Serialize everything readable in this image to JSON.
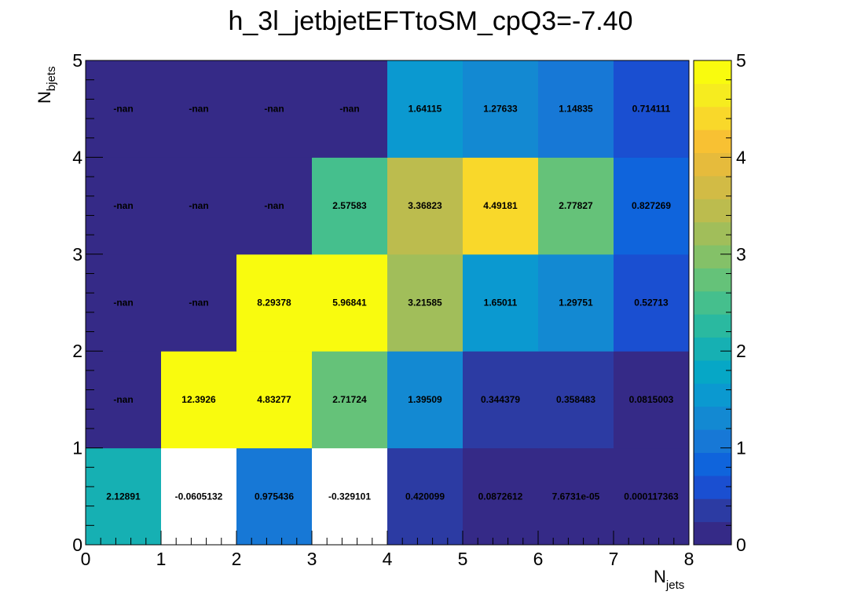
{
  "chart_data": {
    "type": "heatmap",
    "title": "h_3l_jetbjetEFTtoSM_cpQ3=-7.40",
    "xlabel": "N",
    "xlabel_sub": "jets",
    "ylabel": "N",
    "ylabel_sub": "bjets",
    "xlim": [
      0,
      8
    ],
    "ylim": [
      0,
      5
    ],
    "zlim": [
      0,
      5
    ],
    "x_ticks": [
      "0",
      "1",
      "2",
      "3",
      "4",
      "5",
      "6",
      "7",
      "8"
    ],
    "y_ticks": [
      "0",
      "1",
      "2",
      "3",
      "4",
      "5"
    ],
    "z_ticks": [
      "0",
      "1",
      "2",
      "3",
      "4",
      "5"
    ],
    "x_bin_edges": [
      0,
      1,
      2,
      3,
      4,
      5,
      6,
      7,
      8
    ],
    "y_bin_edges": [
      0,
      1,
      2,
      3,
      4,
      5
    ],
    "colormap": [
      "#352a87",
      "#2c3ba3",
      "#1a4fd1",
      "#0f64dc",
      "#1778d6",
      "#1389d2",
      "#0b99d0",
      "#06a7c6",
      "#16b0b3",
      "#2ab9a0",
      "#45bf8d",
      "#65c279",
      "#84c168",
      "#a1be5a",
      "#bcbc4e",
      "#d2bb45",
      "#e6bb3c",
      "#f8c133",
      "#f9d82a",
      "#f6ec1f",
      "#f9fb0e"
    ],
    "cells": [
      {
        "xbin": 0,
        "ybin": 0,
        "value": 2.12891,
        "label": "2.12891"
      },
      {
        "xbin": 1,
        "ybin": 0,
        "value": -0.0605132,
        "label": "-0.0605132"
      },
      {
        "xbin": 2,
        "ybin": 0,
        "value": 0.975436,
        "label": "0.975436"
      },
      {
        "xbin": 3,
        "ybin": 0,
        "value": -0.329101,
        "label": "-0.329101"
      },
      {
        "xbin": 4,
        "ybin": 0,
        "value": 0.420099,
        "label": "0.420099"
      },
      {
        "xbin": 5,
        "ybin": 0,
        "value": 0.0872612,
        "label": "0.0872612"
      },
      {
        "xbin": 6,
        "ybin": 0,
        "value": 7.6731e-05,
        "label": "7.6731e-05"
      },
      {
        "xbin": 7,
        "ybin": 0,
        "value": 0.000117363,
        "label": "0.000117363"
      },
      {
        "xbin": 0,
        "ybin": 1,
        "value": null,
        "label": "-nan"
      },
      {
        "xbin": 1,
        "ybin": 1,
        "value": 12.3926,
        "label": "12.3926"
      },
      {
        "xbin": 2,
        "ybin": 1,
        "value": 4.83277,
        "label": "4.83277"
      },
      {
        "xbin": 3,
        "ybin": 1,
        "value": 2.71724,
        "label": "2.71724"
      },
      {
        "xbin": 4,
        "ybin": 1,
        "value": 1.39509,
        "label": "1.39509"
      },
      {
        "xbin": 5,
        "ybin": 1,
        "value": 0.344379,
        "label": "0.344379"
      },
      {
        "xbin": 6,
        "ybin": 1,
        "value": 0.358483,
        "label": "0.358483"
      },
      {
        "xbin": 7,
        "ybin": 1,
        "value": 0.0815003,
        "label": "0.0815003"
      },
      {
        "xbin": 0,
        "ybin": 2,
        "value": null,
        "label": "-nan"
      },
      {
        "xbin": 1,
        "ybin": 2,
        "value": null,
        "label": "-nan"
      },
      {
        "xbin": 2,
        "ybin": 2,
        "value": 8.29378,
        "label": "8.29378"
      },
      {
        "xbin": 3,
        "ybin": 2,
        "value": 5.96841,
        "label": "5.96841"
      },
      {
        "xbin": 4,
        "ybin": 2,
        "value": 3.21585,
        "label": "3.21585"
      },
      {
        "xbin": 5,
        "ybin": 2,
        "value": 1.65011,
        "label": "1.65011"
      },
      {
        "xbin": 6,
        "ybin": 2,
        "value": 1.29751,
        "label": "1.29751"
      },
      {
        "xbin": 7,
        "ybin": 2,
        "value": 0.52713,
        "label": "0.52713"
      },
      {
        "xbin": 0,
        "ybin": 3,
        "value": null,
        "label": "-nan"
      },
      {
        "xbin": 1,
        "ybin": 3,
        "value": null,
        "label": "-nan"
      },
      {
        "xbin": 2,
        "ybin": 3,
        "value": null,
        "label": "-nan"
      },
      {
        "xbin": 3,
        "ybin": 3,
        "value": 2.57583,
        "label": "2.57583"
      },
      {
        "xbin": 4,
        "ybin": 3,
        "value": 3.36823,
        "label": "3.36823"
      },
      {
        "xbin": 5,
        "ybin": 3,
        "value": 4.49181,
        "label": "4.49181"
      },
      {
        "xbin": 6,
        "ybin": 3,
        "value": 2.77827,
        "label": "2.77827"
      },
      {
        "xbin": 7,
        "ybin": 3,
        "value": 0.827269,
        "label": "0.827269"
      },
      {
        "xbin": 0,
        "ybin": 4,
        "value": null,
        "label": "-nan"
      },
      {
        "xbin": 1,
        "ybin": 4,
        "value": null,
        "label": "-nan"
      },
      {
        "xbin": 2,
        "ybin": 4,
        "value": null,
        "label": "-nan"
      },
      {
        "xbin": 3,
        "ybin": 4,
        "value": null,
        "label": "-nan"
      },
      {
        "xbin": 4,
        "ybin": 4,
        "value": 1.64115,
        "label": "1.64115"
      },
      {
        "xbin": 5,
        "ybin": 4,
        "value": 1.27633,
        "label": "1.27633"
      },
      {
        "xbin": 6,
        "ybin": 4,
        "value": 1.14835,
        "label": "1.14835"
      },
      {
        "xbin": 7,
        "ybin": 4,
        "value": 0.714111,
        "label": "0.714111"
      }
    ]
  }
}
